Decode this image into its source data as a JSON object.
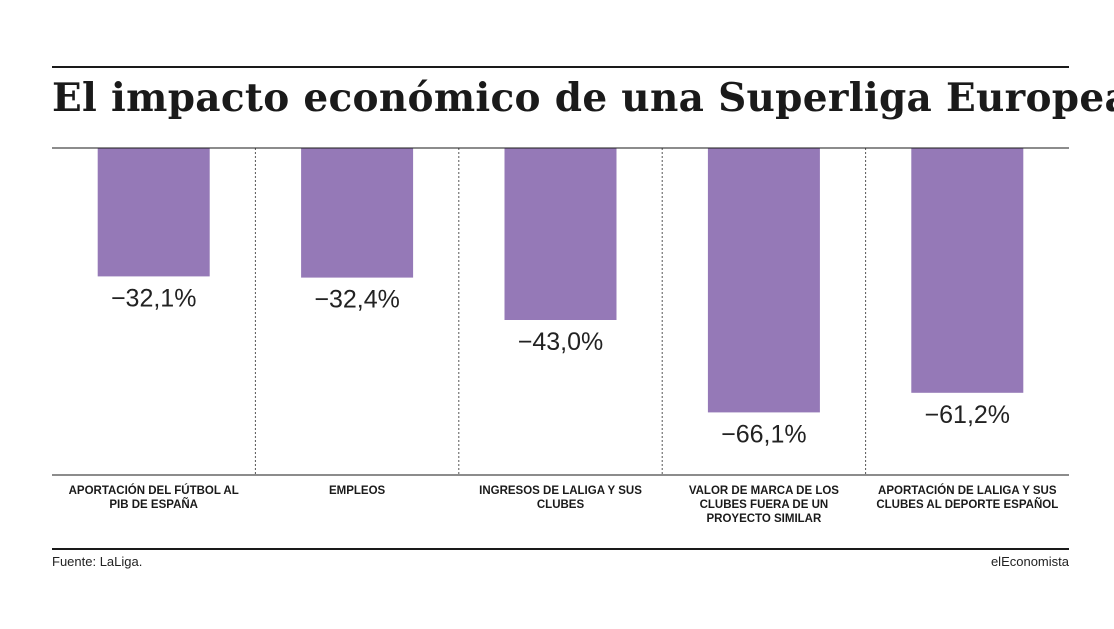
{
  "title": "El impacto económico de una Superliga Europea",
  "source": "Fuente: LaLiga.",
  "brand": "elEconomista",
  "colors": {
    "bar": "#9579b7",
    "grid": "#1a1a1a",
    "divider": "#555555"
  },
  "chart_data": {
    "type": "bar",
    "orientation": "vertical",
    "categories": [
      "APORTACIÓN DEL FÚTBOL AL PIB DE ESPAÑA",
      "EMPLEOS",
      "INGRESOS DE LALIGA Y SUS CLUBES",
      "VALOR DE MARCA DE LOS CLUBES FUERA DE UN PROYECTO SIMILAR",
      "APORTACIÓN DE LALIGA Y SUS CLUBES AL DEPORTE ESPAÑOL"
    ],
    "values": [
      -32.1,
      -32.4,
      -43.0,
      -66.1,
      -61.2
    ],
    "value_labels": [
      "−32,1%",
      "−32,4%",
      "−43,0%",
      "−66,1%",
      "−61,2%"
    ],
    "unit": "%",
    "ylim": [
      -80,
      0
    ],
    "grid": false,
    "legend": "none"
  }
}
